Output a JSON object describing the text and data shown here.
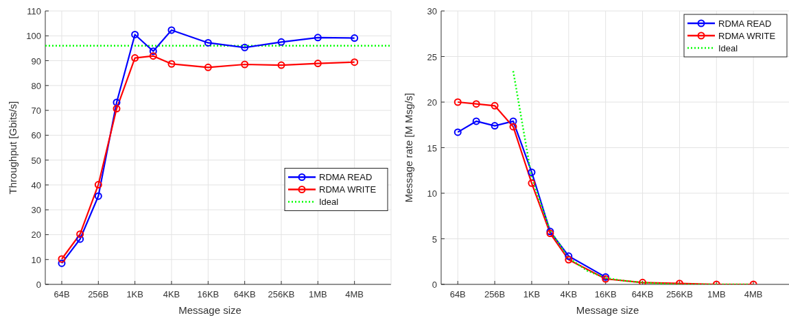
{
  "chart_data": [
    {
      "type": "line",
      "xlabel": "Message size",
      "ylabel": "Throughput [Gbits/s]",
      "categories": [
        "64B",
        null,
        "256B",
        null,
        "1KB",
        null,
        "4KB",
        null,
        "16KB",
        null,
        "64KB",
        null,
        "256KB",
        null,
        "1MB",
        null,
        "4MB"
      ],
      "ylim": [
        0,
        110
      ],
      "yticks": [
        0,
        10,
        20,
        30,
        40,
        50,
        60,
        70,
        80,
        90,
        100,
        110
      ],
      "grid": true,
      "legend": "right",
      "marker": "circle",
      "line_style": "solid",
      "series": [
        {
          "name": "RDMA READ",
          "color": "#0000ff",
          "values": [
            8.5,
            18.2,
            35.5,
            73.2,
            100.5,
            93.8,
            102.3,
            null,
            97.2,
            null,
            95.3,
            null,
            97.5,
            null,
            99.3,
            null,
            99.1
          ]
        },
        {
          "name": "RDMA WRITE",
          "color": "#ff0000",
          "values": [
            10.2,
            20.2,
            40.1,
            70.7,
            91.1,
            91.9,
            88.7,
            null,
            87.3,
            null,
            88.5,
            null,
            88.2,
            null,
            88.9,
            null,
            89.4
          ]
        }
      ],
      "ref_lines": [
        {
          "axis": "y",
          "value": 96,
          "label": "Ideal",
          "color": "#00ff00",
          "line_style": "dotted"
        }
      ]
    },
    {
      "type": "line",
      "xlabel": "Message size",
      "ylabel": "Message rate [M Msg/s]",
      "categories": [
        "64B",
        null,
        "256B",
        null,
        "1KB",
        null,
        "4KB",
        null,
        "16KB",
        null,
        "64KB",
        null,
        "256KB",
        null,
        "1MB",
        null,
        "4MB"
      ],
      "ylim": [
        0,
        30
      ],
      "yticks": [
        0,
        5,
        10,
        15,
        20,
        25,
        30
      ],
      "grid": true,
      "legend": "top right",
      "marker": "circle",
      "line_style": "solid",
      "series": [
        {
          "name": "RDMA READ",
          "color": "#0000ff",
          "values": [
            16.7,
            17.9,
            17.4,
            17.9,
            12.3,
            5.8,
            3.1,
            null,
            0.8,
            null,
            null,
            null,
            null,
            null,
            null,
            null,
            null
          ]
        },
        {
          "name": "RDMA WRITE",
          "color": "#ff0000",
          "values": [
            20.0,
            19.8,
            19.6,
            17.3,
            11.1,
            5.6,
            2.7,
            null,
            0.6,
            null,
            0.2,
            null,
            0.1,
            null,
            0.0,
            null,
            0.0
          ]
        },
        {
          "name": "Ideal",
          "color": "#00ff00",
          "values": [
            null,
            null,
            null,
            23.4,
            11.7,
            5.9,
            2.9,
            1.5,
            0.7,
            0.4,
            0.2,
            0.1,
            0.0,
            0.0,
            0.0,
            0.0,
            0.0
          ],
          "marker": "none",
          "line_style": "dotted"
        }
      ]
    }
  ]
}
